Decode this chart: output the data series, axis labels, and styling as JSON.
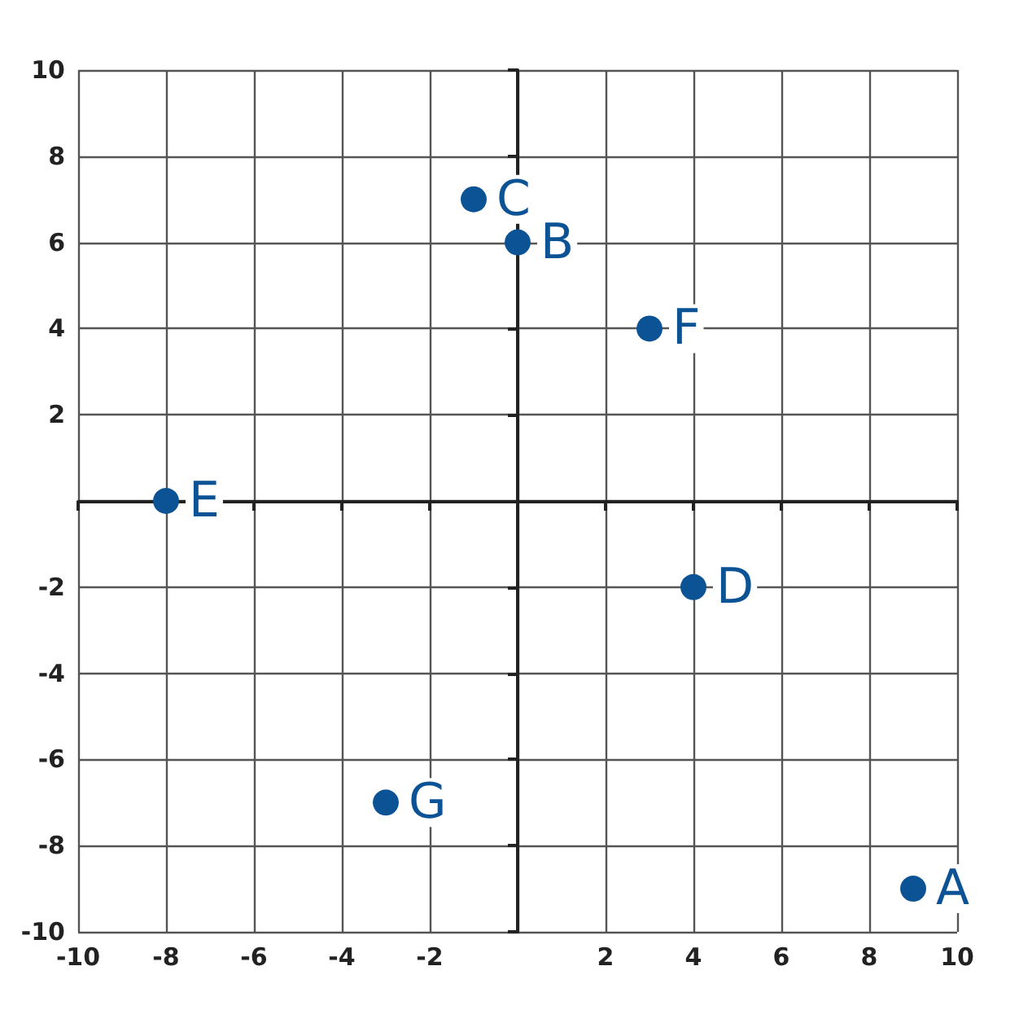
{
  "chart_data": {
    "type": "scatter",
    "x": [
      9,
      0,
      -1,
      4,
      -8,
      3,
      -3
    ],
    "values": [
      -9,
      6,
      7,
      -2,
      0,
      4,
      -7
    ],
    "color": "#0b5394",
    "marker": "circle",
    "grid": true,
    "xlim": [
      -10,
      10
    ],
    "ylim": [
      -10,
      10
    ],
    "xticks": [
      -10,
      -8,
      -6,
      -4,
      -2,
      {
        "value": 0,
        "label": null
      },
      2,
      4,
      6,
      8,
      10
    ],
    "yticks": [
      -10,
      -8,
      -6,
      -4,
      -2,
      {
        "value": 0,
        "label": null
      },
      2,
      4,
      6,
      8,
      10
    ],
    "annotations": [
      {
        "text": "A",
        "x": 9,
        "y": -9
      },
      {
        "text": "B",
        "x": 0,
        "y": 6
      },
      {
        "text": "C",
        "x": -1,
        "y": 7
      },
      {
        "text": "D",
        "x": 4,
        "y": -2
      },
      {
        "text": "E",
        "x": -8,
        "y": 0
      },
      {
        "text": "F",
        "x": 3,
        "y": 4
      },
      {
        "text": "G",
        "x": -3,
        "y": -7
      }
    ]
  }
}
